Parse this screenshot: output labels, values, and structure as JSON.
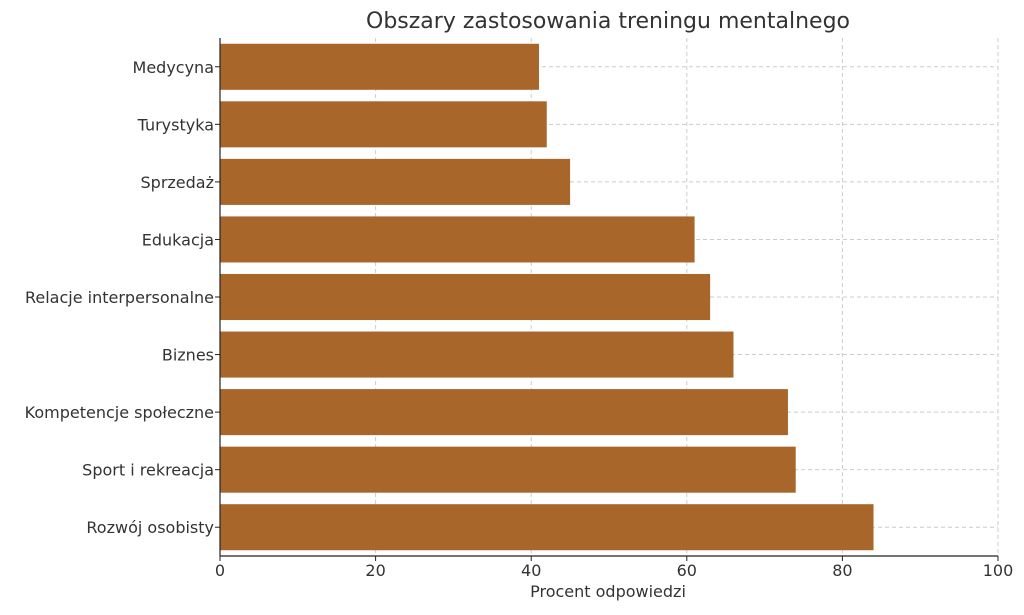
{
  "chart_data": {
    "type": "bar",
    "orientation": "horizontal",
    "title": "Obszary zastosowania treningu mentalnego",
    "xlabel": "Procent odpowiedzi",
    "ylabel": "",
    "xlim": [
      0,
      100
    ],
    "xticks": [
      0,
      20,
      40,
      60,
      80,
      100
    ],
    "grid": true,
    "bar_color": "#a9662b",
    "categories": [
      "Medycyna",
      "Turystyka",
      "Sprzedaż",
      "Edukacja",
      "Relacje interpersonalne",
      "Biznes",
      "Kompetencje społeczne",
      "Sport i rekreacja",
      "Rozwój osobisty"
    ],
    "values": [
      41,
      42,
      45,
      61,
      63,
      66,
      73,
      74,
      84
    ]
  }
}
